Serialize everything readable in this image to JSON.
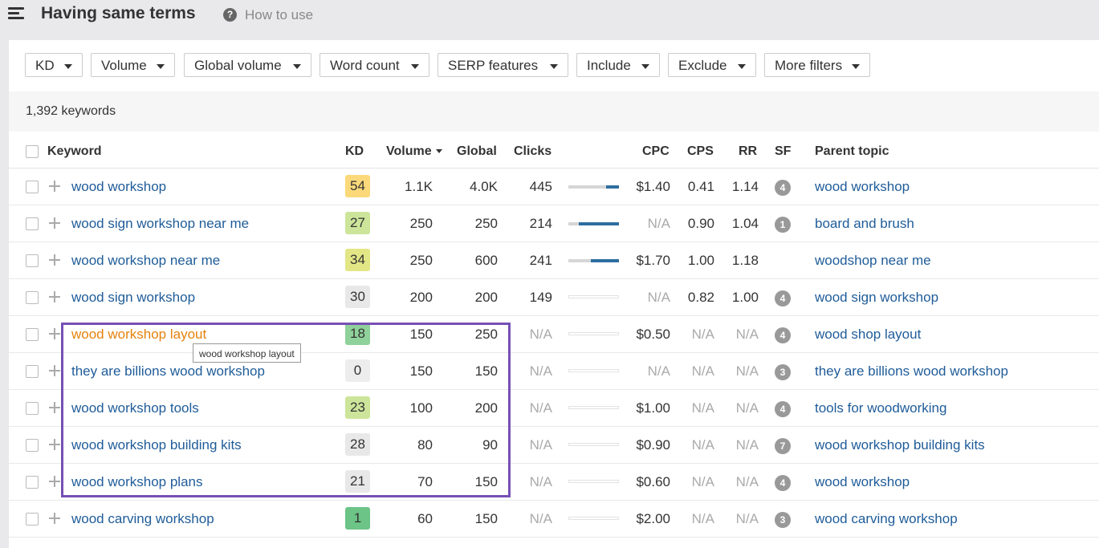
{
  "header": {
    "title": "Having same terms",
    "help_label": "How to use"
  },
  "filters": [
    "KD",
    "Volume",
    "Global volume",
    "Word count",
    "SERP features",
    "Include",
    "Exclude",
    "More filters"
  ],
  "summary": {
    "count_text": "1,392 keywords"
  },
  "columns": {
    "keyword": "Keyword",
    "kd": "KD",
    "volume": "Volume",
    "global": "Global",
    "clicks": "Clicks",
    "cpc": "CPC",
    "cps": "CPS",
    "rr": "RR",
    "sf": "SF",
    "parent": "Parent topic"
  },
  "rows": [
    {
      "keyword": "wood workshop",
      "kd": "54",
      "kd_color": "#fbd97a",
      "volume": "1.1K",
      "global": "4.0K",
      "clicks": "445",
      "clicks_bar": [
        0.75,
        0.25
      ],
      "cpc": "$1.40",
      "cps": "0.41",
      "rr": "1.14",
      "sf": "4",
      "parent": "wood workshop"
    },
    {
      "keyword": "wood sign workshop near me",
      "kd": "27",
      "kd_color": "#cce59a",
      "volume": "250",
      "global": "250",
      "clicks": "214",
      "clicks_bar": [
        0.2,
        0.8
      ],
      "cpc": "N/A",
      "cps": "0.90",
      "rr": "1.04",
      "sf": "1",
      "parent": "board and brush"
    },
    {
      "keyword": "wood workshop near me",
      "kd": "34",
      "kd_color": "#e3e685",
      "volume": "250",
      "global": "600",
      "clicks": "241",
      "clicks_bar": [
        0.45,
        0.55
      ],
      "cpc": "$1.70",
      "cps": "1.00",
      "rr": "1.18",
      "sf": "",
      "parent": "woodshop near me"
    },
    {
      "keyword": "wood sign workshop",
      "kd": "30",
      "kd_color": "#e8e8e8",
      "volume": "200",
      "global": "200",
      "clicks": "149",
      "clicks_bar": null,
      "cpc": "N/A",
      "cps": "0.82",
      "rr": "1.00",
      "sf": "4",
      "parent": "wood sign workshop"
    },
    {
      "keyword": "wood workshop layout",
      "kd": "18",
      "kd_color": "#8fd19a",
      "volume": "150",
      "global": "250",
      "clicks": "N/A",
      "clicks_bar": null,
      "cpc": "$0.50",
      "cps": "N/A",
      "rr": "N/A",
      "sf": "4",
      "parent": "wood shop layout",
      "highlight": true
    },
    {
      "keyword": "they are billions wood workshop",
      "kd": "0",
      "kd_color": "#ededed",
      "volume": "150",
      "global": "150",
      "clicks": "N/A",
      "clicks_bar": null,
      "cpc": "N/A",
      "cps": "N/A",
      "rr": "N/A",
      "sf": "3",
      "parent": "they are billions wood workshop"
    },
    {
      "keyword": "wood workshop tools",
      "kd": "23",
      "kd_color": "#cce59a",
      "volume": "100",
      "global": "200",
      "clicks": "N/A",
      "clicks_bar": null,
      "cpc": "$1.00",
      "cps": "N/A",
      "rr": "N/A",
      "sf": "4",
      "parent": "tools for woodworking"
    },
    {
      "keyword": "wood workshop building kits",
      "kd": "28",
      "kd_color": "#e8e8e8",
      "volume": "80",
      "global": "90",
      "clicks": "N/A",
      "clicks_bar": null,
      "cpc": "$0.90",
      "cps": "N/A",
      "rr": "N/A",
      "sf": "7",
      "parent": "wood workshop building kits"
    },
    {
      "keyword": "wood workshop plans",
      "kd": "21",
      "kd_color": "#e8e8e8",
      "volume": "70",
      "global": "150",
      "clicks": "N/A",
      "clicks_bar": null,
      "cpc": "$0.60",
      "cps": "N/A",
      "rr": "N/A",
      "sf": "4",
      "parent": "wood workshop"
    },
    {
      "keyword": "wood carving workshop",
      "kd": "1",
      "kd_color": "#6cc487",
      "volume": "60",
      "global": "150",
      "clicks": "N/A",
      "clicks_bar": null,
      "cpc": "$2.00",
      "cps": "N/A",
      "rr": "N/A",
      "sf": "3",
      "parent": "wood carving workshop"
    }
  ],
  "tooltip": {
    "text": "wood workshop layout"
  },
  "colors": {
    "link": "#1f5c99",
    "highlight_link": "#e5820c",
    "selection_box": "#7650b4",
    "clicks_bar": "#2e6ea0"
  }
}
